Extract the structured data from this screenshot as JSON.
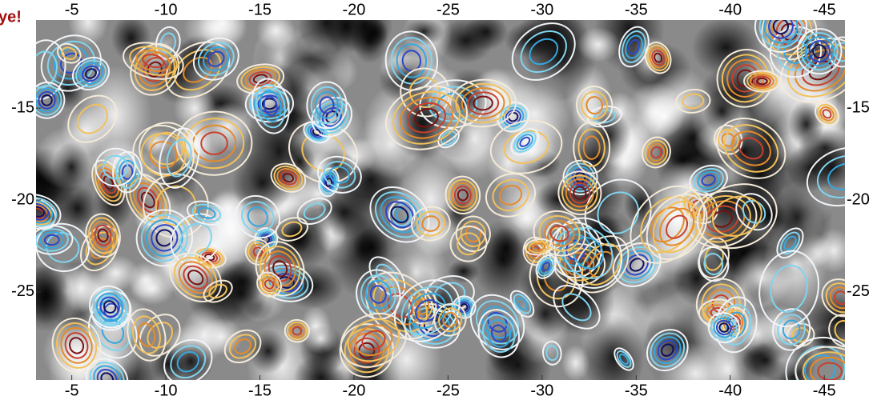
{
  "chart_data": {
    "type": "contour",
    "annotation": "ye!",
    "xlim": [
      -3.1,
      -46.1
    ],
    "xticks": [
      -5,
      -10,
      -15,
      -20,
      -25,
      -30,
      -35,
      -40,
      -45
    ],
    "ylim": [
      -29.8,
      -10.2
    ],
    "yticks": [
      -15,
      -20,
      -25
    ]
  }
}
